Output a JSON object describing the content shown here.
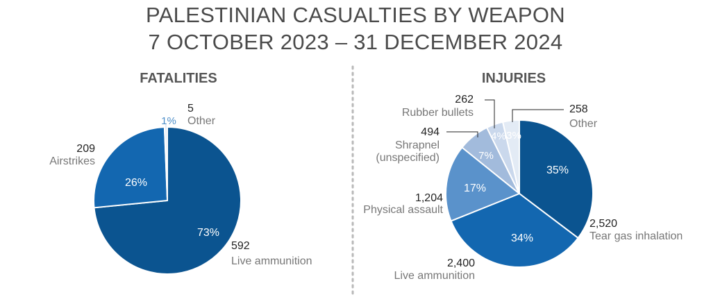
{
  "header": {
    "title_line1": "PALESTINIAN CASUALTIES BY WEAPON",
    "title_line2": "7 OCTOBER 2023 – 31 DECEMBER 2024"
  },
  "colors": {
    "c1": "#0b5490",
    "c2": "#1367b0",
    "c3": "#5a92cb",
    "c4": "#a2bbdc",
    "c5": "#cad8ec",
    "c6": "#e3ebf5",
    "pct_dark": "#ffffff",
    "pct_light": "#4e8fc9",
    "value": "#222222",
    "label": "#777777"
  },
  "chart_data": [
    {
      "type": "pie",
      "title": "FATALITIES",
      "slices": [
        {
          "value": 592,
          "value_label": "592",
          "label": "Live ammunition",
          "pct": "73%",
          "color": "#0b5490"
        },
        {
          "value": 209,
          "value_label": "209",
          "label": "Airstrikes",
          "pct": "26%",
          "color": "#1367b0"
        },
        {
          "value": 5,
          "value_label": "5",
          "label": "Other",
          "pct": "1%",
          "color": "#e3ebf5"
        }
      ]
    },
    {
      "type": "pie",
      "title": "INJURIES",
      "slices": [
        {
          "value": 2520,
          "value_label": "2,520",
          "label": "Tear gas inhalation",
          "pct": "35%",
          "color": "#0b5490"
        },
        {
          "value": 2400,
          "value_label": "2,400",
          "label": "Live ammunition",
          "pct": "34%",
          "color": "#1367b0"
        },
        {
          "value": 1204,
          "value_label": "1,204",
          "label": "Physical assault",
          "pct": "17%",
          "color": "#5a92cb"
        },
        {
          "value": 494,
          "value_label": "494",
          "label": "Shrapnel (unspecified)",
          "label_lines": [
            "Shrapnel",
            "(unspecified)"
          ],
          "pct": "7%",
          "color": "#a2bbdc"
        },
        {
          "value": 262,
          "value_label": "262",
          "label": "Rubber bullets",
          "pct": "4%",
          "color": "#cad8ec"
        },
        {
          "value": 258,
          "value_label": "258",
          "label": "Other",
          "pct": "3%",
          "color": "#e3ebf5"
        }
      ]
    }
  ]
}
